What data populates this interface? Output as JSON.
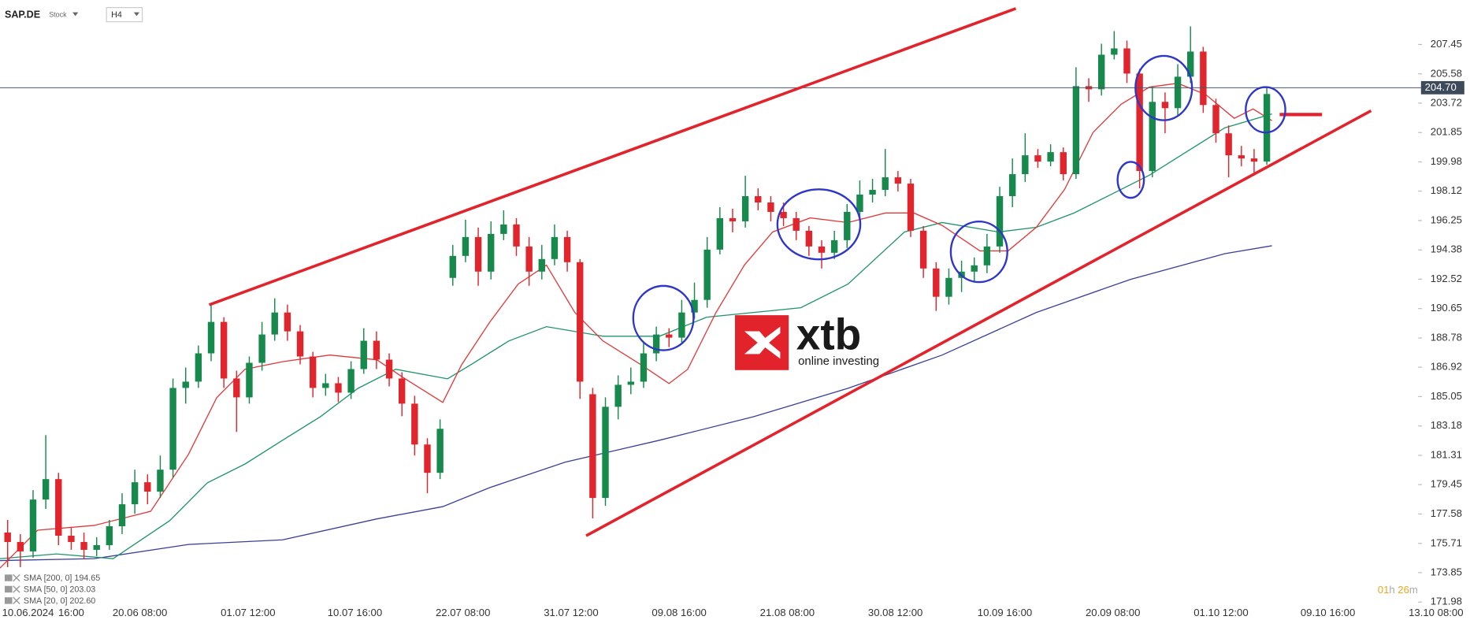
{
  "header": {
    "symbol": "SAP.DE",
    "kind": "Stock",
    "timeframe": "H4"
  },
  "chart_data": {
    "type": "candlestick",
    "up_color": "#17894c",
    "down_color": "#e0252d",
    "xlim": [
      -0.6,
      110.9
    ],
    "ylim": [
      171.74,
      210.28
    ],
    "xticks": [
      {
        "value": 1.6,
        "label": "10.06.2024"
      },
      {
        "value": 5.0,
        "label": "16:00"
      },
      {
        "value": 10.4,
        "label": "20.06 08:00"
      },
      {
        "value": 18.9,
        "label": "01.07 12:00"
      },
      {
        "value": 27.3,
        "label": "10.07 16:00"
      },
      {
        "value": 35.8,
        "label": "22.07 08:00"
      },
      {
        "value": 44.3,
        "label": "31.07 12:00"
      },
      {
        "value": 52.8,
        "label": "09.08 16:00"
      },
      {
        "value": 61.3,
        "label": "21.08 08:00"
      },
      {
        "value": 69.8,
        "label": "30.08 12:00"
      },
      {
        "value": 78.4,
        "label": "10.09 16:00"
      },
      {
        "value": 86.9,
        "label": "20.09 08:00"
      },
      {
        "value": 95.4,
        "label": "01.10 12:00"
      },
      {
        "value": 103.8,
        "label": "09.10 16:00"
      },
      {
        "value": 112.3,
        "label": "13.10 08:00"
      }
    ],
    "yticks": [
      207.45,
      205.58,
      203.72,
      201.85,
      199.98,
      198.12,
      196.25,
      194.38,
      192.52,
      190.65,
      188.78,
      186.92,
      185.05,
      183.18,
      181.31,
      179.45,
      177.58,
      175.71,
      173.85,
      171.98
    ],
    "last_price": {
      "value": 204.7,
      "label": "204.70"
    },
    "open": [
      176.4,
      175.8,
      175.2,
      178.5,
      179.8,
      176.2,
      175.8,
      175.3,
      175.6,
      176.8,
      178.2,
      179.6,
      179.0,
      180.4,
      185.6,
      186.0,
      187.8,
      189.8,
      186.2,
      185.0,
      187.2,
      189.0,
      190.4,
      189.2,
      187.6,
      185.6,
      185.9,
      185.3,
      186.8,
      188.6,
      187.4,
      186.2,
      184.6,
      182.0,
      180.2,
      192.6,
      194.0,
      195.2,
      193.0,
      195.4,
      196.0,
      194.6,
      193.0,
      193.8,
      195.2,
      193.6,
      185.2,
      178.6,
      184.4,
      185.8,
      186.0,
      187.8,
      189.0,
      188.8,
      190.4,
      191.2,
      194.4,
      196.4,
      196.2,
      197.8,
      197.4,
      196.8,
      196.4,
      195.6,
      194.6,
      194.2,
      195.0,
      196.8,
      197.9,
      198.2,
      199.0,
      198.6,
      195.6,
      193.2,
      191.4,
      192.6,
      193.0,
      193.4,
      194.6,
      197.8,
      199.2,
      200.4,
      200.0,
      200.6,
      199.2,
      204.8,
      204.6,
      206.8,
      207.2,
      205.6,
      199.4,
      203.8,
      203.4,
      205.4,
      207.0,
      203.6,
      201.8,
      200.4,
      200.2,
      200.0
    ],
    "high": [
      177.2,
      176.3,
      179.1,
      182.6,
      180.2,
      176.7,
      176.4,
      176.1,
      177.2,
      178.9,
      180.4,
      180.1,
      181.3,
      186.2,
      186.9,
      188.3,
      191.0,
      190.1,
      186.7,
      187.6,
      189.8,
      191.3,
      190.9,
      189.6,
      187.9,
      186.5,
      186.3,
      187.3,
      189.4,
      189.2,
      187.8,
      186.6,
      185.1,
      182.4,
      183.6,
      194.7,
      196.3,
      195.8,
      196.2,
      196.9,
      196.4,
      195.2,
      194.7,
      196.0,
      195.6,
      193.8,
      185.6,
      185.0,
      186.4,
      186.9,
      188.5,
      189.5,
      189.4,
      191.2,
      192.3,
      195.2,
      197.1,
      197.0,
      199.1,
      198.3,
      197.8,
      197.4,
      196.8,
      195.9,
      195.0,
      195.6,
      197.3,
      198.8,
      198.9,
      200.8,
      199.4,
      198.9,
      195.9,
      193.6,
      193.2,
      193.7,
      193.9,
      195.4,
      198.4,
      200.2,
      201.8,
      200.8,
      201.1,
      200.9,
      206.0,
      205.3,
      207.5,
      208.3,
      207.7,
      205.9,
      204.8,
      204.4,
      206.2,
      208.6,
      207.3,
      204.0,
      202.3,
      201.0,
      200.8,
      204.7
    ],
    "low": [
      174.2,
      174.2,
      174.8,
      177.9,
      175.6,
      175.3,
      174.7,
      174.9,
      175.3,
      176.3,
      177.6,
      178.2,
      178.6,
      179.9,
      184.6,
      185.6,
      187.3,
      185.6,
      182.8,
      184.6,
      186.7,
      188.6,
      188.6,
      187.1,
      185.0,
      185.1,
      184.7,
      184.9,
      186.5,
      186.8,
      185.7,
      183.8,
      181.3,
      178.9,
      179.8,
      192.1,
      193.6,
      192.1,
      192.5,
      195.0,
      194.0,
      192.1,
      192.5,
      193.4,
      193.0,
      184.9,
      177.3,
      178.1,
      183.6,
      185.2,
      185.6,
      187.3,
      188.2,
      188.5,
      190.0,
      190.7,
      194.1,
      195.5,
      195.8,
      196.9,
      196.2,
      195.9,
      195.0,
      194.0,
      193.2,
      193.8,
      194.5,
      196.4,
      197.4,
      197.8,
      198.1,
      195.2,
      192.6,
      190.5,
      190.9,
      191.7,
      192.4,
      192.9,
      194.2,
      197.1,
      198.7,
      199.6,
      199.7,
      198.8,
      198.9,
      203.8,
      204.2,
      206.5,
      205.0,
      198.3,
      199.0,
      201.8,
      202.9,
      205.0,
      203.1,
      201.2,
      199.0,
      199.7,
      199.3,
      199.8
    ],
    "close": [
      175.8,
      175.2,
      178.5,
      179.8,
      176.2,
      175.8,
      175.3,
      175.6,
      176.8,
      178.2,
      179.6,
      179.0,
      180.4,
      185.6,
      186.0,
      187.8,
      189.8,
      186.2,
      185.0,
      187.2,
      189.0,
      190.4,
      189.2,
      187.6,
      185.6,
      185.9,
      185.3,
      186.8,
      188.6,
      187.4,
      186.2,
      184.6,
      182.0,
      180.2,
      183.0,
      194.0,
      195.2,
      193.0,
      195.4,
      196.0,
      194.6,
      193.0,
      193.8,
      195.2,
      193.6,
      186.0,
      178.6,
      184.4,
      185.8,
      186.0,
      187.8,
      189.0,
      188.8,
      190.4,
      191.2,
      194.4,
      196.4,
      196.2,
      197.8,
      197.4,
      196.8,
      196.4,
      195.6,
      194.6,
      194.2,
      195.0,
      196.8,
      197.9,
      198.2,
      199.0,
      198.6,
      195.6,
      193.2,
      191.4,
      192.6,
      193.0,
      193.4,
      194.6,
      197.8,
      199.2,
      200.4,
      200.0,
      200.6,
      199.2,
      204.8,
      204.6,
      206.8,
      207.2,
      205.6,
      199.4,
      203.8,
      203.4,
      205.4,
      207.0,
      203.6,
      201.8,
      200.4,
      200.2,
      200.0,
      204.3
    ],
    "series": [
      {
        "name": "SMA [200, 0] 194.65",
        "color": "#3b3f98",
        "x": [
          -0.6,
          6.81,
          14.21,
          21.62,
          29.03,
          34.21,
          37.92,
          43.84,
          51.25,
          58.66,
          66.07,
          73.47,
          80.88,
          88.29,
          95.7,
          99.4
        ],
        "values": [
          174.62,
          174.74,
          175.64,
          175.94,
          177.27,
          178.05,
          179.26,
          180.88,
          182.27,
          183.77,
          185.58,
          187.69,
          190.4,
          192.51,
          194.14,
          194.65
        ]
      },
      {
        "name": "SMA [50, 0] 203.03",
        "color": "#1f9468",
        "x": [
          -0.6,
          3.84,
          8.29,
          12.73,
          15.7,
          18.66,
          21.62,
          24.59,
          27.55,
          30.51,
          34.59,
          36.44,
          39.4,
          42.36,
          46.81,
          51.25,
          54.96,
          62.36,
          66.07,
          70.51,
          73.47,
          77.92,
          80.88,
          83.84,
          86.81,
          89.77,
          92.73,
          95.7,
          99.4
        ],
        "values": [
          174.74,
          175.04,
          174.74,
          177.15,
          179.56,
          180.76,
          182.27,
          183.77,
          185.58,
          186.79,
          186.18,
          187.09,
          188.59,
          189.5,
          188.89,
          188.89,
          190.1,
          190.7,
          192.21,
          195.52,
          196.12,
          195.52,
          195.82,
          196.73,
          197.93,
          199.14,
          200.64,
          202.15,
          203.03
        ]
      },
      {
        "name": "SMA [20, 0] 202.60",
        "color": "#e0393a",
        "x": [
          -0.6,
          2.36,
          6.81,
          11.25,
          14.21,
          16.44,
          18.66,
          21.62,
          25.33,
          29.03,
          31.25,
          34.21,
          35.7,
          37.92,
          40.14,
          42.36,
          44.59,
          46.81,
          49.77,
          52.0,
          53.47,
          55.7,
          57.92,
          60.14,
          63.1,
          66.07,
          69.03,
          71.25,
          73.47,
          76.44,
          78.66,
          80.88,
          83.1,
          85.33,
          87.55,
          89.77,
          92.0,
          94.21,
          96.44,
          97.92,
          99.4
        ],
        "values": [
          174.14,
          176.55,
          176.85,
          177.75,
          181.36,
          184.98,
          186.79,
          187.27,
          187.69,
          187.39,
          186.18,
          184.68,
          187.09,
          189.8,
          192.21,
          193.41,
          190.4,
          188.59,
          187.09,
          185.88,
          186.79,
          190.4,
          193.41,
          195.52,
          196.42,
          196.12,
          196.73,
          196.73,
          195.94,
          194.32,
          194.32,
          195.82,
          198.23,
          201.85,
          203.65,
          204.74,
          204.98,
          204.26,
          202.75,
          203.35,
          202.6
        ]
      }
    ]
  },
  "logo": {
    "brand": "xtb",
    "tagline": "online investing"
  },
  "timer": {
    "hours": "01",
    "hours_unit": "h",
    "minutes": "26",
    "minutes_unit": "m"
  }
}
